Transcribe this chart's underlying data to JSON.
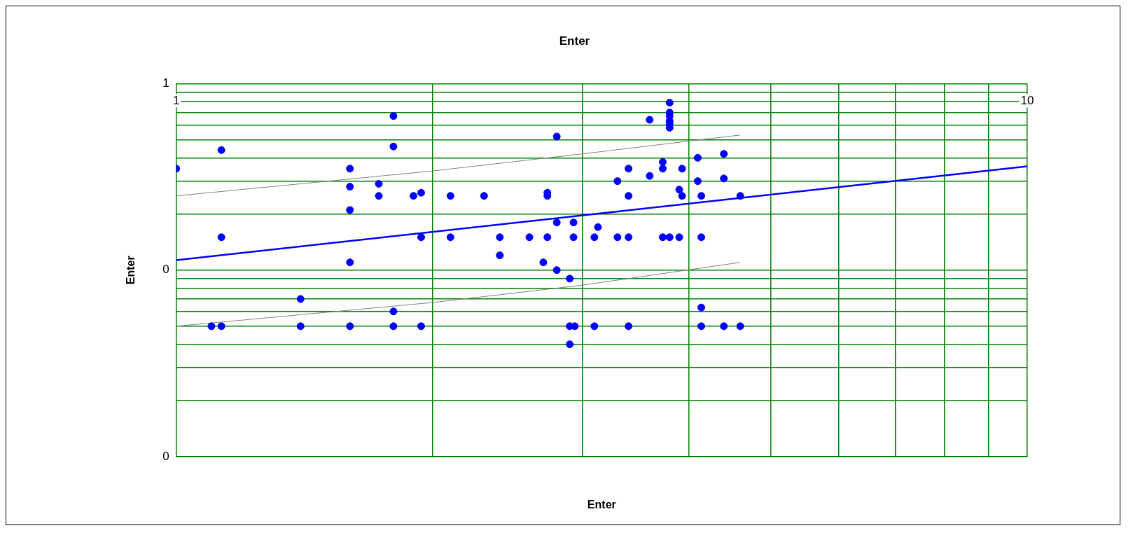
{
  "chart_data": {
    "type": "scatter",
    "title": "Enter",
    "xlabel": "Enter",
    "ylabel": "Enter",
    "log": "xy",
    "grid": true,
    "legend": false,
    "marker": "circle",
    "xlim": [
      1,
      10
    ],
    "ylim": [
      0.01,
      1
    ],
    "xticks": [
      {
        "value": 1,
        "label": "1"
      },
      {
        "value": 2,
        "label": null
      },
      {
        "value": 3,
        "label": null
      },
      {
        "value": 4,
        "label": null
      },
      {
        "value": 5,
        "label": null
      },
      {
        "value": 6,
        "label": null
      },
      {
        "value": 7,
        "label": null
      },
      {
        "value": 8,
        "label": null
      },
      {
        "value": 9,
        "label": null
      },
      {
        "value": 10,
        "label": "10"
      }
    ],
    "yticks": [
      {
        "value": 0.01,
        "label": "0"
      },
      {
        "value": 0.02,
        "label": null
      },
      {
        "value": 0.03,
        "label": null
      },
      {
        "value": 0.04,
        "label": null
      },
      {
        "value": 0.05,
        "label": null
      },
      {
        "value": 0.06,
        "label": null
      },
      {
        "value": 0.07,
        "label": null
      },
      {
        "value": 0.08,
        "label": null
      },
      {
        "value": 0.09,
        "label": null
      },
      {
        "value": 0.1,
        "label": "0"
      },
      {
        "value": 0.2,
        "label": null
      },
      {
        "value": 0.3,
        "label": null
      },
      {
        "value": 0.4,
        "label": null
      },
      {
        "value": 0.5,
        "label": null
      },
      {
        "value": 0.6,
        "label": null
      },
      {
        "value": 0.7,
        "label": null
      },
      {
        "value": 0.8,
        "label": null
      },
      {
        "value": 0.9,
        "label": null
      },
      {
        "value": 1,
        "label": "1"
      }
    ],
    "series": [
      {
        "color": "#0000ff",
        "x": [
          1,
          1.13,
          1.13,
          1.1,
          1.13,
          1.4,
          1.4,
          1.6,
          1.6,
          1.6,
          1.6,
          1.6,
          1.73,
          1.73,
          1.8,
          1.8,
          1.8,
          1.8,
          1.9,
          1.94,
          1.94,
          1.94,
          2.1,
          2.1,
          2.3,
          2.4,
          2.4,
          2.6,
          2.7,
          2.73,
          2.73,
          2.73,
          2.8,
          2.8,
          2.8,
          2.9,
          2.9,
          2.94,
          2.9,
          2.93,
          2.93,
          3.1,
          3.1,
          3.13,
          3.3,
          3.3,
          3.4,
          3.4,
          3.4,
          3.4,
          3.6,
          3.6,
          3.73,
          3.73,
          3.73,
          3.8,
          3.8,
          3.8,
          3.8,
          3.8,
          3.8,
          3.8,
          3.9,
          3.93,
          3.93,
          3.9,
          4.1,
          4.1,
          4.14,
          4.14,
          4.14,
          4.14,
          4.4,
          4.4,
          4.4,
          4.6,
          4.6
        ],
        "values": [
          0.35,
          0.44,
          0.15,
          0.05,
          0.05,
          0.07,
          0.05,
          0.35,
          0.28,
          0.21,
          0.11,
          0.05,
          0.29,
          0.25,
          0.67,
          0.46,
          0.06,
          0.05,
          0.25,
          0.26,
          0.15,
          0.05,
          0.25,
          0.15,
          0.25,
          0.15,
          0.12,
          0.15,
          0.11,
          0.26,
          0.25,
          0.15,
          0.52,
          0.18,
          0.1,
          0.09,
          0.05,
          0.05,
          0.04,
          0.18,
          0.15,
          0.15,
          0.05,
          0.17,
          0.3,
          0.15,
          0.35,
          0.25,
          0.15,
          0.05,
          0.64,
          0.32,
          0.38,
          0.35,
          0.15,
          0.79,
          0.7,
          0.67,
          0.63,
          0.61,
          0.58,
          0.15,
          0.27,
          0.35,
          0.25,
          0.15,
          0.4,
          0.3,
          0.25,
          0.15,
          0.063,
          0.05,
          0.42,
          0.31,
          0.05,
          0.25,
          0.05
        ]
      },
      {
        "type": "line",
        "marker": "none",
        "color": "#0000ff",
        "x": [
          1,
          10
        ],
        "values": [
          0.113,
          0.36
        ]
      },
      {
        "type": "line",
        "marker": "none",
        "color": "#808080",
        "x": [
          1,
          2,
          3,
          4.6
        ],
        "values": [
          0.25,
          0.34,
          0.42,
          0.53
        ]
      },
      {
        "type": "line",
        "marker": "none",
        "color": "#808080",
        "x": [
          1,
          2,
          3,
          4.6
        ],
        "values": [
          0.05,
          0.067,
          0.083,
          0.11
        ]
      }
    ]
  }
}
